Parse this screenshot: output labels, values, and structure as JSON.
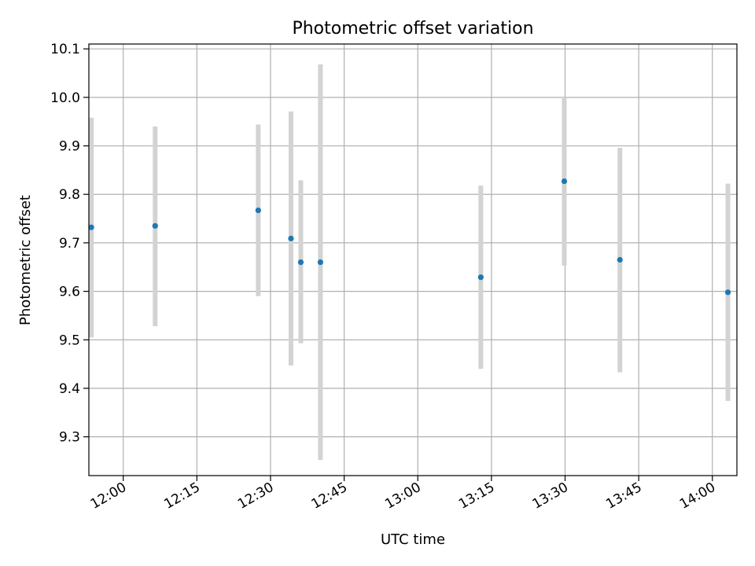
{
  "chart_data": {
    "type": "scatter",
    "title": "Photometric offset variation",
    "xlabel": "UTC time",
    "ylabel": "Photometric offset",
    "x_axis_type": "time",
    "xlim": [
      "11:53",
      "14:05"
    ],
    "ylim": [
      9.22,
      10.11
    ],
    "x_ticks": [
      "12:00",
      "12:15",
      "12:30",
      "12:45",
      "13:00",
      "13:15",
      "13:30",
      "13:45",
      "14:00"
    ],
    "y_ticks": [
      9.3,
      9.4,
      9.5,
      9.6,
      9.7,
      9.8,
      9.9,
      10.0,
      10.1
    ],
    "y_tick_labels": [
      "9.3",
      "9.4",
      "9.5",
      "9.6",
      "9.7",
      "9.8",
      "9.9",
      "10.0",
      "10.1"
    ],
    "grid": true,
    "marker_color": "#1f77b4",
    "errorbar_color": "#d3d3d3",
    "points": [
      {
        "time": "11:53:30",
        "y": 9.732,
        "ylow": 9.505,
        "yhigh": 9.958
      },
      {
        "time": "12:06:30",
        "y": 9.735,
        "ylow": 9.528,
        "yhigh": 9.94
      },
      {
        "time": "12:27:30",
        "y": 9.767,
        "ylow": 9.59,
        "yhigh": 9.944
      },
      {
        "time": "12:34:10",
        "y": 9.709,
        "ylow": 9.447,
        "yhigh": 9.971
      },
      {
        "time": "12:36:10",
        "y": 9.66,
        "ylow": 9.493,
        "yhigh": 9.829
      },
      {
        "time": "12:40:10",
        "y": 9.66,
        "ylow": 9.252,
        "yhigh": 10.068
      },
      {
        "time": "13:12:50",
        "y": 9.629,
        "ylow": 9.44,
        "yhigh": 9.818
      },
      {
        "time": "13:29:50",
        "y": 9.827,
        "ylow": 9.653,
        "yhigh": 10.0
      },
      {
        "time": "13:41:10",
        "y": 9.665,
        "ylow": 9.433,
        "yhigh": 9.896
      },
      {
        "time": "14:03:10",
        "y": 9.598,
        "ylow": 9.374,
        "yhigh": 9.822
      }
    ]
  }
}
